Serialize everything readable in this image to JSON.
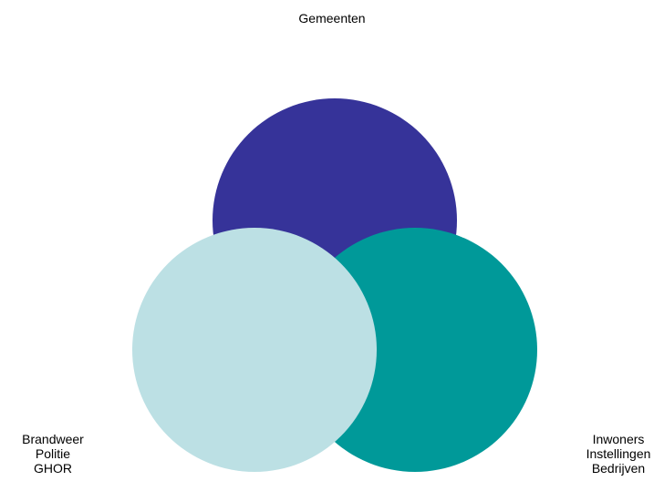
{
  "circles": [
    {
      "label_lines": [
        "Gemeenten"
      ],
      "color": "#363399"
    },
    {
      "label_lines": [
        "Brandweer",
        "Politie",
        "GHOR"
      ],
      "color": "#BCE0E4"
    },
    {
      "label_lines": [
        "Inwoners",
        "Instellingen",
        "Bedrijven"
      ],
      "color": "#009999"
    }
  ]
}
